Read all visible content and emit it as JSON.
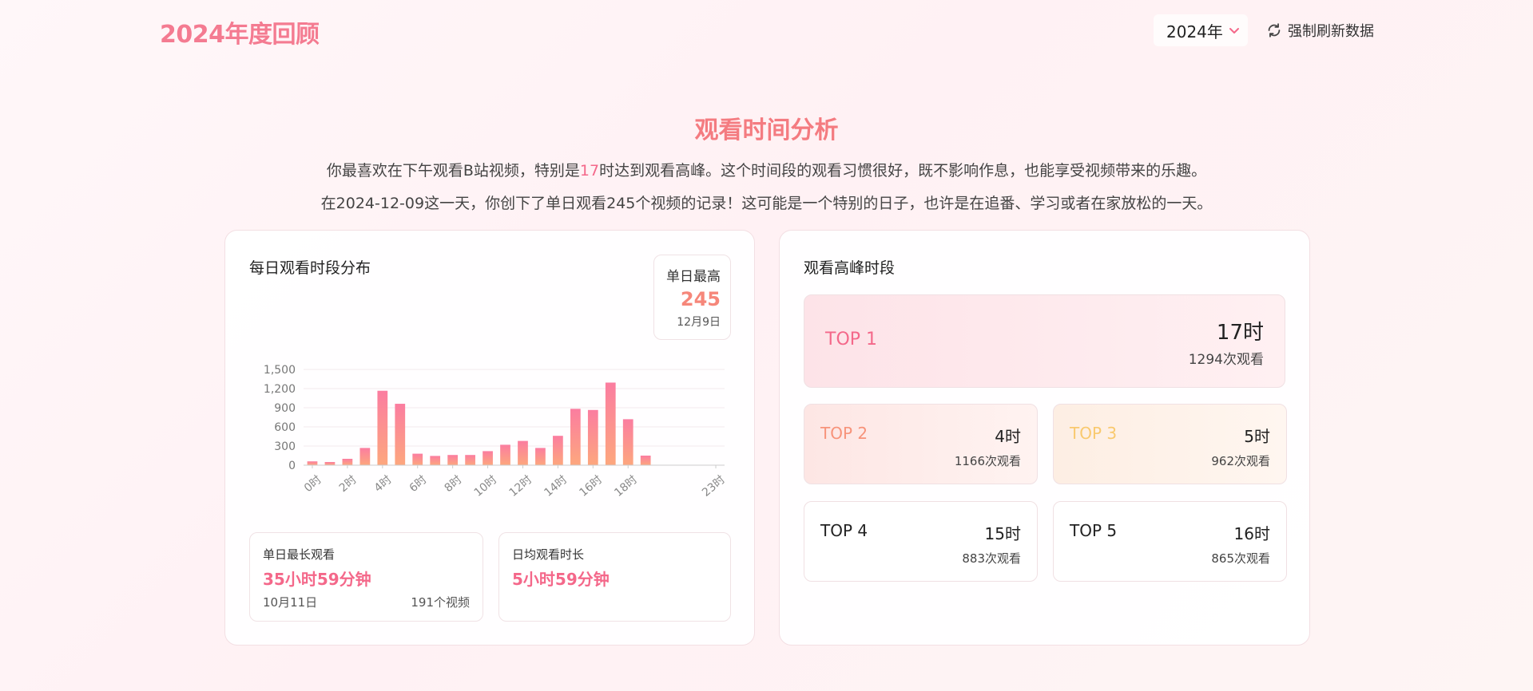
{
  "header": {
    "brand": "2024年度回顾",
    "year_label": "2024年",
    "refresh_label": "强制刷新数据"
  },
  "section": {
    "title": "观看时间分析",
    "line1_a": "你最喜欢在下午观看B站视频，特别是",
    "line1_hl": "17",
    "line1_b": "时达到观看高峰。这个时间段的观看习惯很好，既不影响作息，也能享受视频带来的乐趣。",
    "line2": "在2024-12-09这一天，你创下了单日观看245个视频的记录！这可能是一个特别的日子，也许是在追番、学习或者在家放松的一天。"
  },
  "left_card": {
    "title": "每日观看时段分布",
    "peak": {
      "label": "单日最高",
      "value": "245",
      "date": "12月9日"
    },
    "stat_longest": {
      "label": "单日最长观看",
      "value": "35小时59分钟",
      "date": "10月11日",
      "count": "191个视频"
    },
    "stat_average": {
      "label": "日均观看时长",
      "value": "5小时59分钟"
    }
  },
  "right_card": {
    "title": "观看高峰时段",
    "tops": [
      {
        "rank": "TOP 1",
        "hour": "17时",
        "views": "1294次观看"
      },
      {
        "rank": "TOP 2",
        "hour": "4时",
        "views": "1166次观看"
      },
      {
        "rank": "TOP 3",
        "hour": "5时",
        "views": "962次观看"
      },
      {
        "rank": "TOP 4",
        "hour": "15时",
        "views": "883次观看"
      },
      {
        "rank": "TOP 5",
        "hour": "16时",
        "views": "865次观看"
      }
    ]
  },
  "colors": {
    "accent": "#f4688a",
    "bar_top": "#fb7da0",
    "bar_bottom": "#fda77e"
  },
  "chart_data": {
    "type": "bar",
    "categories": [
      "0时",
      "1时",
      "2时",
      "3时",
      "4时",
      "5时",
      "6时",
      "7时",
      "8时",
      "9时",
      "10时",
      "11时",
      "12时",
      "13时",
      "14时",
      "15时",
      "16时",
      "17时",
      "18时",
      "19时",
      "20时",
      "21时",
      "22时",
      "23时"
    ],
    "tick_labels": [
      "0时",
      "2时",
      "4时",
      "6时",
      "8时",
      "10时",
      "12时",
      "14时",
      "16时",
      "18时",
      "23时"
    ],
    "values": [
      60,
      50,
      100,
      270,
      1166,
      962,
      180,
      145,
      160,
      160,
      220,
      320,
      380,
      270,
      460,
      883,
      865,
      1294,
      720,
      150,
      0,
      0,
      0,
      0
    ],
    "yticks": [
      "0",
      "300",
      "600",
      "900",
      "1,200",
      "1,500"
    ],
    "ylim": [
      0,
      1500
    ],
    "grid": true
  }
}
